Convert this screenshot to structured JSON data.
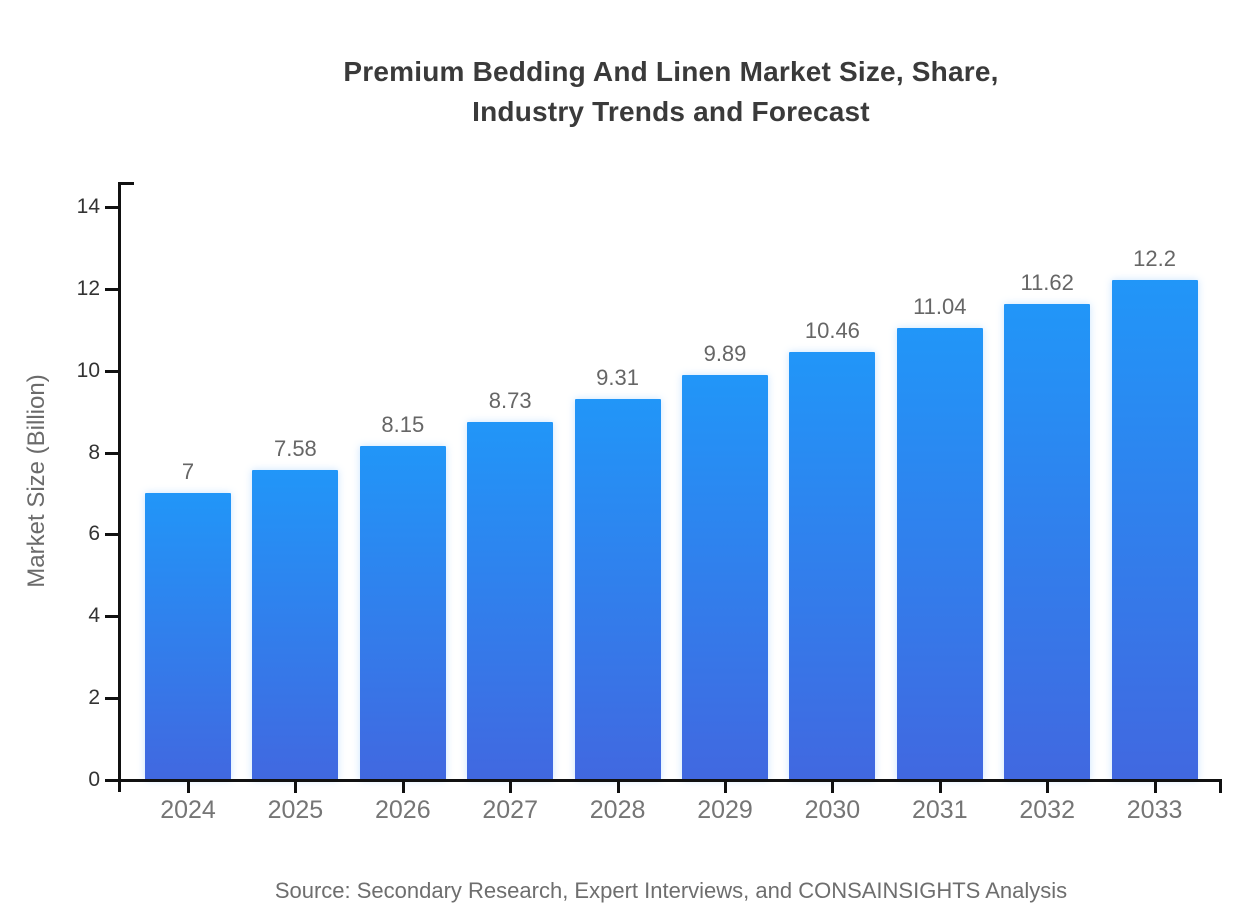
{
  "chart_data": {
    "type": "bar",
    "title": "Premium Bedding And Linen Market Size, Share, Industry Trends and Forecast",
    "title_lines": [
      "Premium Bedding And Linen Market Size, Share,",
      "Industry Trends and Forecast"
    ],
    "categories": [
      "2024",
      "2025",
      "2026",
      "2027",
      "2028",
      "2029",
      "2030",
      "2031",
      "2032",
      "2033"
    ],
    "values": [
      7,
      7.58,
      8.15,
      8.73,
      9.31,
      9.89,
      10.46,
      11.04,
      11.62,
      12.2
    ],
    "value_labels": [
      "7",
      "7.58",
      "8.15",
      "8.73",
      "9.31",
      "9.89",
      "10.46",
      "11.04",
      "11.62",
      "12.2"
    ],
    "xlabel": "",
    "ylabel": "Market Size (Billion)",
    "ylim": [
      0,
      14.6
    ],
    "y_ticks": [
      0,
      2,
      4,
      6,
      8,
      10,
      12,
      14
    ],
    "grid": false,
    "legend": false,
    "source_note": "Source: Secondary Research, Expert Interviews, and CONSAINSIGHTS Analysis"
  },
  "styles": {
    "page_bg": "#ffffff",
    "bar_gradient_top": "#2196f8",
    "bar_gradient_bottom": "#4168e0",
    "axis_color": "#111111",
    "title_color": "#3a3a3a",
    "ytick_color": "#333333",
    "xtick_color": "#757575",
    "value_color": "#666666",
    "ylabel_color": "#6b6b6b",
    "source_color": "#6e6e6e"
  }
}
